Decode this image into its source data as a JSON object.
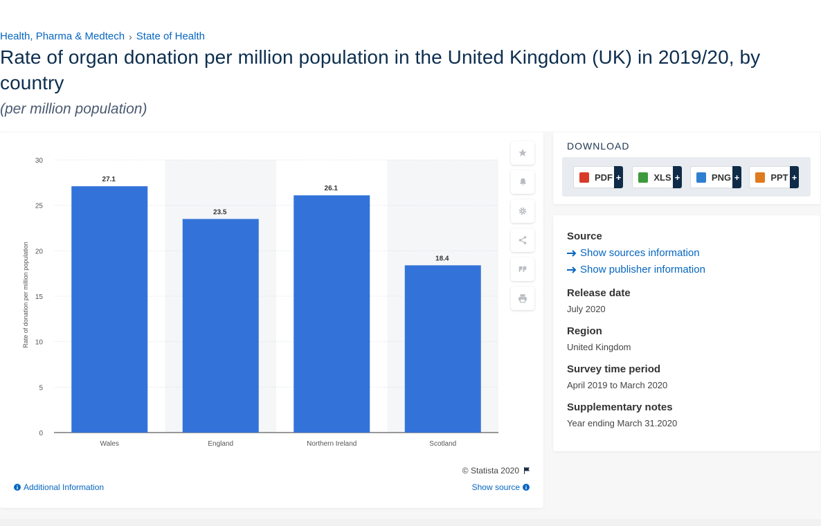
{
  "breadcrumb": {
    "category": "Health, Pharma & Medtech",
    "separator": "›",
    "topic": "State of Health"
  },
  "title": "Rate of organ donation per million population in the United Kingdom (UK) in 2019/20, by country",
  "subtitle": "(per million population)",
  "chart_data": {
    "type": "bar",
    "categories": [
      "Wales",
      "England",
      "Northern Ireland",
      "Scotland"
    ],
    "values": [
      27.1,
      23.5,
      26.1,
      18.4
    ],
    "value_labels": [
      "27.1",
      "23.5",
      "26.1",
      "18.4"
    ],
    "ylabel": "Rate of donation per million population",
    "xlabel": "",
    "ylim": [
      0,
      30
    ],
    "yticks": [
      "0",
      "5",
      "10",
      "15",
      "20",
      "25",
      "30"
    ],
    "grid": true,
    "bar_color": "#3373d9",
    "band_color": "#f5f6f8"
  },
  "tools": [
    "star-icon",
    "bell-icon",
    "gear-icon",
    "share-icon",
    "quote-icon",
    "print-icon"
  ],
  "chart_footer": {
    "copyright": "© Statista 2020",
    "additional_info": "Additional Information",
    "show_source": "Show source"
  },
  "download": {
    "title": "DOWNLOAD",
    "buttons": [
      {
        "label": "PDF",
        "icon": "pdf-icon",
        "color": "#d93b2b"
      },
      {
        "label": "XLS",
        "icon": "xls-icon",
        "color": "#3c9a3c"
      },
      {
        "label": "PNG",
        "icon": "png-icon",
        "color": "#2f7fd1"
      },
      {
        "label": "PPT",
        "icon": "ppt-icon",
        "color": "#e07a1f"
      }
    ],
    "plus": "+"
  },
  "details": {
    "source_heading": "Source",
    "show_sources": "Show sources information",
    "show_publisher": "Show publisher information",
    "release_heading": "Release date",
    "release_value": "July 2020",
    "region_heading": "Region",
    "region_value": "United Kingdom",
    "survey_heading": "Survey time period",
    "survey_value": "April 2019 to March 2020",
    "notes_heading": "Supplementary notes",
    "notes_value": "Year ending March 31.2020"
  }
}
